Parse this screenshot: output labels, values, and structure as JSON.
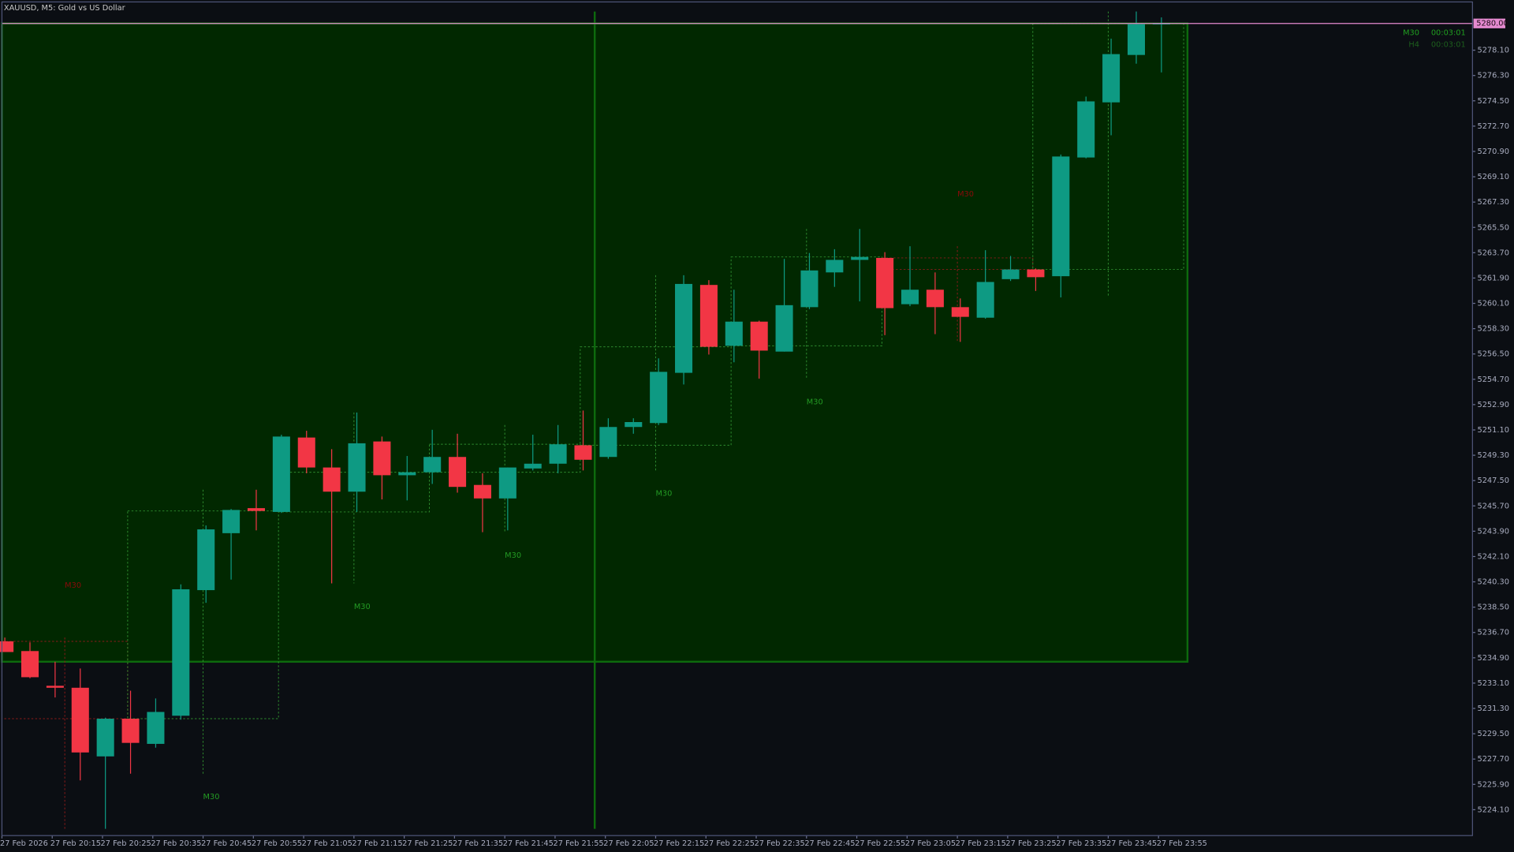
{
  "chart_data": {
    "type": "candlestick",
    "title": "XAUUSD, M5:  Gold vs US Dollar",
    "up_color": "#0e9a83",
    "down_color": "#f23645",
    "categories": [
      "27 Feb 2026",
      null,
      "27 Feb 20:15",
      null,
      "27 Feb 20:25",
      null,
      "27 Feb 20:35",
      null,
      "27 Feb 20:45",
      null,
      "27 Feb 20:55",
      null,
      "27 Feb 21:05",
      null,
      "27 Feb 21:15",
      null,
      "27 Feb 21:25",
      null,
      "27 Feb 21:35",
      null,
      "27 Feb 21:45",
      null,
      "27 Feb 21:55",
      null,
      "27 Feb 22:05",
      null,
      "27 Feb 22:15",
      null,
      "27 Feb 22:25",
      null,
      "27 Feb 22:35",
      null,
      "27 Feb 22:45",
      null,
      "27 Feb 22:55",
      null,
      "27 Feb 23:05",
      null,
      "27 Feb 23:15",
      null,
      "27 Feb 23:25",
      null,
      "27 Feb 23:35",
      null,
      "27 Feb 23:45",
      null,
      "27 Feb 23:55"
    ],
    "open": [
      5236.07,
      5235.38,
      5232.91,
      5232.77,
      5227.89,
      5230.57,
      5228.78,
      5230.78,
      5239.71,
      5243.76,
      5245.54,
      5245.27,
      5250.56,
      5248.43,
      5246.71,
      5250.28,
      5247.88,
      5248.09,
      5249.18,
      5247.19,
      5246.23,
      5248.36,
      5248.7,
      5250.01,
      5249.18,
      5251.31,
      5251.59,
      5255.16,
      5261.41,
      5257.08,
      5258.8,
      5256.67,
      5259.83,
      5262.3,
      5263.19,
      5263.33,
      5260.04,
      5261.07,
      5259.83,
      5259.08,
      5261.82,
      5262.51,
      5262.03,
      5270.47,
      5274.39,
      5277.76,
      5279.95
    ],
    "high": [
      5236.34,
      5236.0,
      5234.62,
      5234.14,
      5230.64,
      5232.56,
      5232.01,
      5240.12,
      5244.31,
      5245.48,
      5246.85,
      5250.76,
      5251.04,
      5249.73,
      5252.34,
      5250.63,
      5249.25,
      5251.11,
      5250.83,
      5248.02,
      5248.43,
      5250.76,
      5251.45,
      5252.48,
      5251.93,
      5251.93,
      5256.19,
      5262.1,
      5261.75,
      5261.07,
      5258.87,
      5263.26,
      5263.68,
      5263.95,
      5265.39,
      5263.74,
      5264.16,
      5262.3,
      5260.45,
      5263.88,
      5263.47,
      5262.58,
      5270.68,
      5274.8,
      5278.92,
      5280.85,
      5280.43
    ],
    "low": [
      5235.31,
      5233.45,
      5232.08,
      5226.18,
      5222.74,
      5226.66,
      5228.51,
      5230.5,
      5238.81,
      5240.46,
      5243.96,
      5245.2,
      5248.02,
      5240.19,
      5245.27,
      5246.16,
      5246.09,
      5247.26,
      5246.64,
      5243.83,
      5243.96,
      5248.22,
      5248.02,
      5248.22,
      5249.05,
      5250.83,
      5251.45,
      5254.33,
      5256.46,
      5255.91,
      5254.75,
      5256.67,
      5259.69,
      5261.27,
      5260.24,
      5257.84,
      5259.9,
      5257.91,
      5257.36,
      5259.01,
      5261.69,
      5260.98,
      5260.52,
      5270.41,
      5272.05,
      5277.14,
      5276.52
    ],
    "close": [
      5235.31,
      5233.52,
      5232.77,
      5228.17,
      5230.57,
      5228.85,
      5231.05,
      5239.77,
      5244.03,
      5245.41,
      5245.34,
      5250.63,
      5248.43,
      5246.71,
      5250.15,
      5247.88,
      5248.09,
      5249.18,
      5247.05,
      5246.23,
      5248.43,
      5248.7,
      5250.08,
      5248.98,
      5251.31,
      5251.66,
      5255.23,
      5261.48,
      5257.01,
      5258.8,
      5256.74,
      5259.97,
      5262.44,
      5263.19,
      5263.4,
      5259.76,
      5261.07,
      5259.83,
      5259.14,
      5261.62,
      5262.51,
      5261.96,
      5270.54,
      5274.46,
      5277.82,
      5279.95,
      5280.0
    ],
    "ylim": [
      5222.26,
      5281.53
    ],
    "yticks": [
      {
        "value": 5224.1,
        "label": "5224.10"
      },
      {
        "value": 5225.9,
        "label": "5225.90"
      },
      {
        "value": 5227.7,
        "label": "5227.70"
      },
      {
        "value": 5229.5,
        "label": "5229.50"
      },
      {
        "value": 5231.3,
        "label": "5231.30"
      },
      {
        "value": 5233.1,
        "label": "5233.10"
      },
      {
        "value": 5234.9,
        "label": "5234.90"
      },
      {
        "value": 5236.7,
        "label": "5236.70"
      },
      {
        "value": 5238.5,
        "label": "5238.50"
      },
      {
        "value": 5240.3,
        "label": "5240.30"
      },
      {
        "value": 5242.1,
        "label": "5242.10"
      },
      {
        "value": 5243.9,
        "label": "5243.90"
      },
      {
        "value": 5245.7,
        "label": "5245.70"
      },
      {
        "value": 5247.5,
        "label": "5247.50"
      },
      {
        "value": 5249.3,
        "label": "5249.30"
      },
      {
        "value": 5251.1,
        "label": "5251.10"
      },
      {
        "value": 5252.9,
        "label": "5252.90"
      },
      {
        "value": 5254.7,
        "label": "5254.70"
      },
      {
        "value": 5256.5,
        "label": "5256.50"
      },
      {
        "value": 5258.3,
        "label": "5258.30"
      },
      {
        "value": 5260.1,
        "label": "5260.10"
      },
      {
        "value": 5261.9,
        "label": "5261.90"
      },
      {
        "value": 5263.7,
        "label": "5263.70"
      },
      {
        "value": 5265.5,
        "label": "5265.50"
      },
      {
        "value": 5267.3,
        "label": "5267.30"
      },
      {
        "value": 5269.1,
        "label": "5269.10"
      },
      {
        "value": 5270.9,
        "label": "5270.90"
      },
      {
        "value": 5272.7,
        "label": "5272.70"
      },
      {
        "value": 5274.5,
        "label": "5274.50"
      },
      {
        "value": 5276.3,
        "label": "5276.30"
      },
      {
        "value": 5278.1,
        "label": "5278.10"
      }
    ],
    "current_price": {
      "value": 5280,
      "label": "5280.00"
    },
    "h4": {
      "open": 5234.62,
      "high": 5280.85,
      "low": 5222.74,
      "close": 5280.0
    },
    "m30_label": "M30",
    "timers": [
      {
        "name": "M30",
        "time": "00:03:01"
      },
      {
        "name": "H4",
        "time": "00:03:01"
      }
    ]
  }
}
